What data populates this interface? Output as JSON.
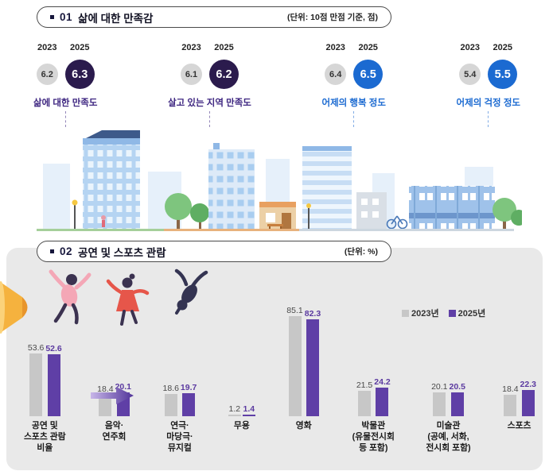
{
  "section1": {
    "number": "01",
    "title": "삶에 대한 만족감",
    "unit": "(단위: 10점 만점 기준, 점)",
    "years": [
      "2023",
      "2025"
    ],
    "metrics": [
      {
        "label": "삶에 대한 만족도",
        "prev": "6.2",
        "curr": "6.3",
        "circle_color": "#2b1b4d",
        "label_color": "#3d2580"
      },
      {
        "label": "살고 있는 지역 만족도",
        "prev": "6.1",
        "curr": "6.2",
        "circle_color": "#2b1b4d",
        "label_color": "#3d2580"
      },
      {
        "label": "어제의 행복 정도",
        "prev": "6.4",
        "curr": "6.5",
        "circle_color": "#1b6ad1",
        "label_color": "#1b6ad1"
      },
      {
        "label": "어제의 걱정 정도",
        "prev": "5.4",
        "curr": "5.5",
        "circle_color": "#1b6ad1",
        "label_color": "#1b6ad1"
      }
    ]
  },
  "section2": {
    "number": "02",
    "title": "공연 및 스포츠 관람",
    "unit": "(단위: %)",
    "legend": [
      {
        "label": "2023년",
        "color": "#c7c7c7"
      },
      {
        "label": "2025년",
        "color": "#5f3fa6"
      }
    ],
    "illustrations": [
      "megaphone",
      "dancers",
      "arrow-right"
    ]
  },
  "chart_data": {
    "type": "bar",
    "title": "공연 및 스포츠 관람",
    "unit": "%",
    "categories": [
      "공연 및\n스포츠 관람\n비율",
      "음악·\n연주회",
      "연극·\n마당극·\n뮤지컬",
      "무용",
      "영화",
      "박물관\n(유물전시회\n등 포함)",
      "미술관\n(공예, 서화,\n전시회 포함)",
      "스포츠"
    ],
    "series": [
      {
        "name": "2023년",
        "color": "#c7c7c7",
        "values": [
          53.6,
          18.4,
          18.6,
          1.2,
          85.1,
          21.5,
          20.1,
          18.4
        ]
      },
      {
        "name": "2025년",
        "color": "#5f3fa6",
        "values": [
          52.6,
          20.1,
          19.7,
          1.4,
          82.3,
          24.2,
          20.5,
          22.3
        ]
      }
    ],
    "ylim": [
      0,
      90
    ],
    "grid": false,
    "legend_position": "top-right"
  }
}
